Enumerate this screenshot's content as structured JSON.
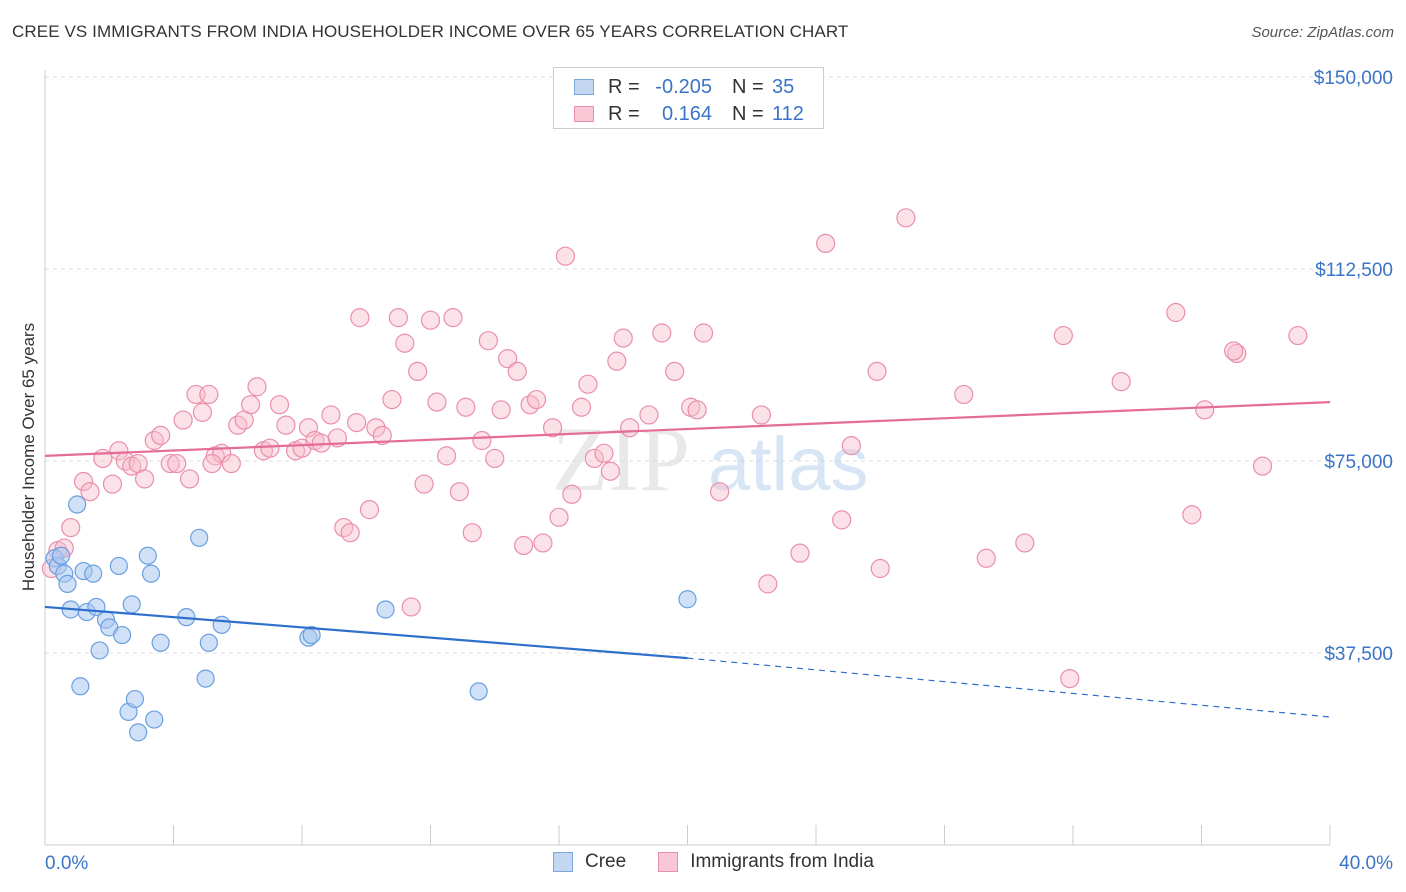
{
  "header": {
    "title": "CREE VS IMMIGRANTS FROM INDIA HOUSEHOLDER INCOME OVER 65 YEARS CORRELATION CHART",
    "source": "Source: ZipAtlas.com"
  },
  "legend": {
    "rows": [
      {
        "r_label": "R =",
        "r_value": "-0.205",
        "n_label": "N =",
        "n_value": "35"
      },
      {
        "r_label": "R =",
        "r_value": "0.164",
        "n_label": "N =",
        "n_value": "112"
      }
    ]
  },
  "bottom_legend": {
    "cree": "Cree",
    "india": "Immigrants from India"
  },
  "watermark": {
    "zip": "ZIP",
    "atlas": "atlas"
  },
  "colors": {
    "cree_fill": "#aac8f0",
    "cree_stroke": "#6a9fe0",
    "cree_line": "#2f6fcc",
    "india_fill": "#f6bccd",
    "india_stroke": "#ea8fab",
    "india_line": "#e56d95",
    "tick_blue": "#3a74c8",
    "grid": "#dddddd"
  },
  "chart_data": {
    "type": "scatter",
    "title": "CREE VS IMMIGRANTS FROM INDIA HOUSEHOLDER INCOME OVER 65 YEARS CORRELATION CHART",
    "xlabel": "",
    "ylabel": "Householder Income Over 65 years",
    "xlim": [
      0,
      40
    ],
    "ylim": [
      0,
      157000
    ],
    "x_tick_labels": [
      "0.0%",
      "40.0%"
    ],
    "y_ticks": [
      {
        "value": 37500,
        "label": "$37,500"
      },
      {
        "value": 75000,
        "label": "$75,000"
      },
      {
        "value": 112500,
        "label": "$112,500"
      },
      {
        "value": 150000,
        "label": "$150,000"
      }
    ],
    "series": [
      {
        "name": "Cree",
        "R": -0.205,
        "N": 35,
        "trend": {
          "x_start": 0,
          "y_start": 46500,
          "x_solid_end": 20,
          "y_solid_end": 36500,
          "x_end": 40,
          "y_end": 25000
        },
        "points": [
          [
            0.3,
            56000
          ],
          [
            0.4,
            54500
          ],
          [
            0.6,
            53000
          ],
          [
            0.7,
            51000
          ],
          [
            0.8,
            46000
          ],
          [
            1.0,
            66500
          ],
          [
            1.1,
            31000
          ],
          [
            1.2,
            53500
          ],
          [
            1.3,
            45500
          ],
          [
            1.5,
            53000
          ],
          [
            1.6,
            46500
          ],
          [
            1.7,
            38000
          ],
          [
            1.9,
            44000
          ],
          [
            2.0,
            42500
          ],
          [
            2.3,
            54500
          ],
          [
            2.4,
            41000
          ],
          [
            2.6,
            26000
          ],
          [
            2.7,
            47000
          ],
          [
            2.8,
            28500
          ],
          [
            2.9,
            22000
          ],
          [
            3.2,
            56500
          ],
          [
            3.4,
            24500
          ],
          [
            3.3,
            53000
          ],
          [
            3.6,
            39500
          ],
          [
            4.4,
            44500
          ],
          [
            4.8,
            60000
          ],
          [
            5.0,
            32500
          ],
          [
            5.1,
            39500
          ],
          [
            5.5,
            43000
          ],
          [
            8.2,
            40500
          ],
          [
            8.3,
            41000
          ],
          [
            10.6,
            46000
          ],
          [
            13.5,
            30000
          ],
          [
            20.0,
            48000
          ],
          [
            0.5,
            56500
          ]
        ]
      },
      {
        "name": "Immigrants from India",
        "R": 0.164,
        "N": 112,
        "trend": {
          "x_start": 0,
          "y_start": 76000,
          "x_end": 40,
          "y_end": 86500
        },
        "points": [
          [
            0.2,
            54000
          ],
          [
            0.4,
            57500
          ],
          [
            0.6,
            58000
          ],
          [
            0.8,
            62000
          ],
          [
            1.2,
            71000
          ],
          [
            1.4,
            69000
          ],
          [
            1.8,
            75500
          ],
          [
            2.1,
            70500
          ],
          [
            2.3,
            77000
          ],
          [
            2.5,
            75000
          ],
          [
            2.7,
            74000
          ],
          [
            2.9,
            74500
          ],
          [
            3.1,
            71500
          ],
          [
            3.4,
            79000
          ],
          [
            3.6,
            80000
          ],
          [
            3.9,
            74500
          ],
          [
            4.1,
            74500
          ],
          [
            4.3,
            83000
          ],
          [
            4.5,
            71500
          ],
          [
            4.7,
            88000
          ],
          [
            4.9,
            84500
          ],
          [
            5.1,
            88000
          ],
          [
            5.3,
            76000
          ],
          [
            5.5,
            76500
          ],
          [
            5.8,
            74500
          ],
          [
            6.0,
            82000
          ],
          [
            6.2,
            83000
          ],
          [
            6.4,
            86000
          ],
          [
            6.6,
            89500
          ],
          [
            6.8,
            77000
          ],
          [
            7.0,
            77500
          ],
          [
            7.3,
            86000
          ],
          [
            7.5,
            82000
          ],
          [
            7.8,
            77000
          ],
          [
            8.0,
            77500
          ],
          [
            8.2,
            81500
          ],
          [
            8.4,
            79000
          ],
          [
            8.6,
            78500
          ],
          [
            8.9,
            84000
          ],
          [
            9.1,
            79500
          ],
          [
            9.3,
            62000
          ],
          [
            9.5,
            61000
          ],
          [
            9.7,
            82500
          ],
          [
            9.8,
            103000
          ],
          [
            10.1,
            65500
          ],
          [
            10.3,
            81500
          ],
          [
            10.5,
            80000
          ],
          [
            10.8,
            87000
          ],
          [
            11.0,
            103000
          ],
          [
            11.2,
            98000
          ],
          [
            11.4,
            46500
          ],
          [
            11.6,
            92500
          ],
          [
            11.8,
            70500
          ],
          [
            12.0,
            102500
          ],
          [
            12.2,
            86500
          ],
          [
            12.5,
            76000
          ],
          [
            12.7,
            103000
          ],
          [
            12.9,
            69000
          ],
          [
            13.1,
            85500
          ],
          [
            13.3,
            61000
          ],
          [
            13.6,
            79000
          ],
          [
            13.8,
            98500
          ],
          [
            14.0,
            75500
          ],
          [
            14.2,
            85000
          ],
          [
            14.4,
            95000
          ],
          [
            14.7,
            92500
          ],
          [
            14.9,
            58500
          ],
          [
            15.1,
            86000
          ],
          [
            15.3,
            87000
          ],
          [
            15.5,
            59000
          ],
          [
            15.8,
            81500
          ],
          [
            16.0,
            64000
          ],
          [
            16.2,
            115000
          ],
          [
            16.4,
            68500
          ],
          [
            16.7,
            85500
          ],
          [
            16.9,
            90000
          ],
          [
            17.1,
            75500
          ],
          [
            17.4,
            76500
          ],
          [
            17.6,
            73000
          ],
          [
            17.8,
            94500
          ],
          [
            18.0,
            99000
          ],
          [
            18.2,
            81500
          ],
          [
            18.8,
            84000
          ],
          [
            19.2,
            100000
          ],
          [
            19.6,
            92500
          ],
          [
            20.1,
            85500
          ],
          [
            20.3,
            85000
          ],
          [
            20.5,
            100000
          ],
          [
            21.0,
            69000
          ],
          [
            22.3,
            84000
          ],
          [
            22.5,
            51000
          ],
          [
            23.5,
            57000
          ],
          [
            24.3,
            117500
          ],
          [
            24.8,
            63500
          ],
          [
            25.1,
            78000
          ],
          [
            25.9,
            92500
          ],
          [
            26.0,
            54000
          ],
          [
            26.8,
            122500
          ],
          [
            28.6,
            88000
          ],
          [
            29.3,
            56000
          ],
          [
            30.5,
            59000
          ],
          [
            31.7,
            99500
          ],
          [
            31.9,
            32500
          ],
          [
            33.5,
            90500
          ],
          [
            35.2,
            104000
          ],
          [
            35.7,
            64500
          ],
          [
            36.1,
            85000
          ],
          [
            37.1,
            96000
          ],
          [
            37.9,
            74000
          ],
          [
            39.0,
            99500
          ],
          [
            37.0,
            96500
          ],
          [
            5.2,
            74500
          ]
        ]
      }
    ]
  }
}
